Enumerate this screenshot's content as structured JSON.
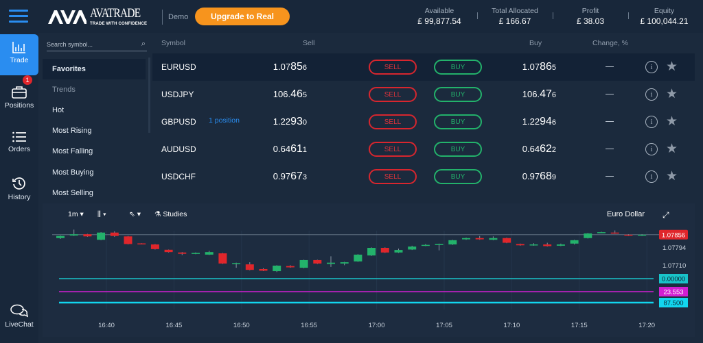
{
  "header": {
    "logo": "AVATRADE",
    "tagline": "TRADE WITH CONFIDENCE",
    "mode": "Demo",
    "upgrade_label": "Upgrade to Real",
    "stats": [
      {
        "label": "Available",
        "value": "£ 99,877.54"
      },
      {
        "label": "Total Allocated",
        "value": "£ 166.67"
      },
      {
        "label": "Profit",
        "value": "£ 38.03"
      },
      {
        "label": "Equity",
        "value": "£ 100,044.21"
      }
    ]
  },
  "nav": [
    {
      "label": "Trade",
      "icon": "bar-chart-icon"
    },
    {
      "label": "Positions",
      "icon": "briefcase-icon",
      "badge": "1"
    },
    {
      "label": "Orders",
      "icon": "list-icon"
    },
    {
      "label": "History",
      "icon": "history-icon"
    },
    {
      "label": "LiveChat",
      "icon": "chat-icon"
    }
  ],
  "categories": {
    "search_placeholder": "Search symbol...",
    "items": [
      "Favorites",
      "Trends",
      "Hot",
      "Most Rising",
      "Most Falling",
      "Most Buying",
      "Most Selling"
    ]
  },
  "table": {
    "headers": {
      "symbol": "Symbol",
      "sell": "Sell",
      "buy": "Buy",
      "change": "Change, %"
    },
    "sell_label": "SELL",
    "buy_label": "BUY",
    "change_placeholder": "—",
    "rows": [
      {
        "symbol": "EURUSD",
        "note": "",
        "sell": [
          "1.07",
          "85",
          "6"
        ],
        "buy": [
          "1.07",
          "86",
          "5"
        ]
      },
      {
        "symbol": "USDJPY",
        "note": "",
        "sell": [
          "106.",
          "46",
          "5"
        ],
        "buy": [
          "106.",
          "47",
          "6"
        ]
      },
      {
        "symbol": "GBPUSD",
        "note": "1 position",
        "sell": [
          "1.22",
          "93",
          "0"
        ],
        "buy": [
          "1.22",
          "94",
          "6"
        ]
      },
      {
        "symbol": "AUDUSD",
        "note": "",
        "sell": [
          "0.64",
          "61",
          "1"
        ],
        "buy": [
          "0.64",
          "62",
          "2"
        ]
      },
      {
        "symbol": "USDCHF",
        "note": "",
        "sell": [
          "0.97",
          "67",
          "3"
        ],
        "buy": [
          "0.97",
          "68",
          "9"
        ]
      }
    ]
  },
  "chart_toolbar": {
    "interval": "1m",
    "studies": "Studies",
    "instrument": "Euro Dollar"
  },
  "chart_data": {
    "type": "candlestick",
    "title": "Euro Dollar",
    "interval": "1m",
    "y_ticks": [
      "1.07794",
      "1.07710"
    ],
    "last_price": "1.07856",
    "x_ticks": [
      "16:40",
      "16:45",
      "16:50",
      "16:55",
      "17:00",
      "17:05",
      "17:10",
      "17:15",
      "17:20"
    ],
    "indicators": [
      {
        "value": "0.00000",
        "color": "#19c3c9"
      },
      {
        "value": "23.553",
        "color": "#d21fd2"
      },
      {
        "value": "87.500",
        "color": "#12d6ee"
      }
    ],
    "candles": [
      [
        1.0784,
        1.07852,
        1.07836,
        1.0785
      ],
      [
        1.07852,
        1.0788,
        1.0785,
        1.07858
      ],
      [
        1.07858,
        1.0786,
        1.07846,
        1.07848
      ],
      [
        1.07832,
        1.07868,
        1.0783,
        1.07866
      ],
      [
        1.07866,
        1.07872,
        1.07846,
        1.0785
      ],
      [
        1.07848,
        1.0785,
        1.0781,
        1.07812
      ],
      [
        1.07815,
        1.07816,
        1.0781,
        1.07812
      ],
      [
        1.0781,
        1.07812,
        1.07786,
        1.07788
      ],
      [
        1.07785,
        1.07786,
        1.07772,
        1.07774
      ],
      [
        1.07772,
        1.07774,
        1.0776,
        1.07766
      ],
      [
        1.07766,
        1.07772,
        1.07764,
        1.0777
      ],
      [
        1.07762,
        1.0778,
        1.0776,
        1.07774
      ],
      [
        1.07768,
        1.0777,
        1.07718,
        1.0772
      ],
      [
        1.0772,
        1.07724,
        1.077,
        1.07722
      ],
      [
        1.07716,
        1.07726,
        1.07688,
        1.0769
      ],
      [
        1.07694,
        1.07698,
        1.07684,
        1.07686
      ],
      [
        1.07684,
        1.07712,
        1.0768,
        1.0771
      ],
      [
        1.07708,
        1.07712,
        1.077,
        1.07702
      ],
      [
        1.077,
        1.07738,
        1.07698,
        1.07736
      ],
      [
        1.07736,
        1.07738,
        1.07718,
        1.0772
      ],
      [
        1.07718,
        1.07754,
        1.07704,
        1.07724
      ],
      [
        1.0772,
        1.07728,
        1.07712,
        1.07726
      ],
      [
        1.0773,
        1.07764,
        1.07728,
        1.07762
      ],
      [
        1.07758,
        1.07796,
        1.07756,
        1.07794
      ],
      [
        1.07794,
        1.07796,
        1.0777,
        1.07772
      ],
      [
        1.07772,
        1.0779,
        1.0777,
        1.07784
      ],
      [
        1.07786,
        1.07804,
        1.07784,
        1.078
      ],
      [
        1.07804,
        1.07812,
        1.07802,
        1.07808
      ],
      [
        1.07808,
        1.07814,
        1.07782,
        1.07812
      ],
      [
        1.0781,
        1.07832,
        1.07808,
        1.0783
      ],
      [
        1.07834,
        1.07842,
        1.07832,
        1.0784
      ],
      [
        1.0784,
        1.0785,
        1.07832,
        1.07834
      ],
      [
        1.07832,
        1.07848,
        1.0783,
        1.0784
      ],
      [
        1.0784,
        1.07842,
        1.07816,
        1.07818
      ],
      [
        1.07812,
        1.07814,
        1.07804,
        1.07806
      ],
      [
        1.07806,
        1.07816,
        1.07804,
        1.0781
      ],
      [
        1.0781,
        1.07818,
        1.078,
        1.07802
      ],
      [
        1.07804,
        1.07814,
        1.07802,
        1.0781
      ],
      [
        1.07814,
        1.07832,
        1.0781,
        1.0783
      ],
      [
        1.0784,
        1.07864,
        1.07838,
        1.07862
      ],
      [
        1.07866,
        1.0787,
        1.07864,
        1.07868
      ],
      [
        1.07866,
        1.07876,
        1.0786,
        1.07862
      ],
      [
        1.07856,
        1.07858,
        1.0785,
        1.07852
      ],
      [
        1.07852,
        1.07858,
        1.0785,
        1.07856
      ]
    ]
  }
}
